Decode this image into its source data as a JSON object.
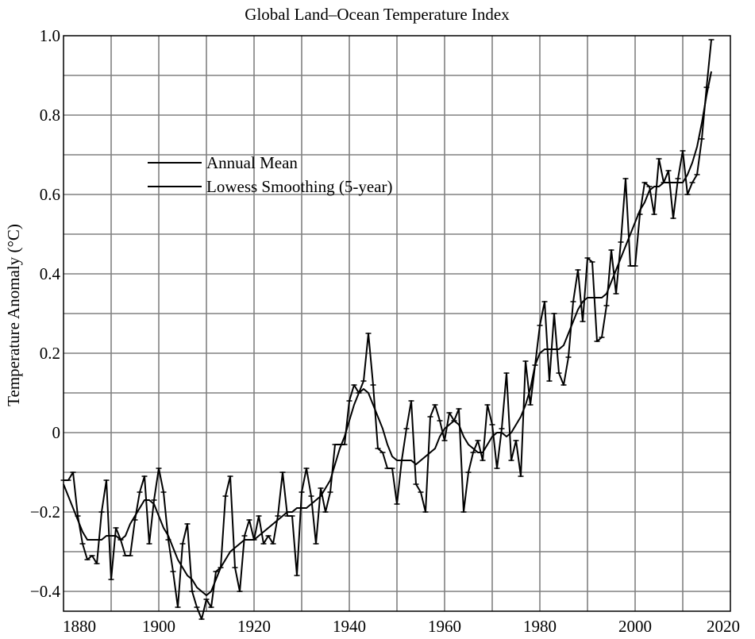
{
  "chart_data": {
    "type": "line",
    "title": "Global Land–Ocean Temperature Index",
    "xlabel": "",
    "ylabel": "Temperature Anomaly (°C)",
    "xlim": [
      1880,
      2020
    ],
    "ylim": [
      -0.45,
      1.0
    ],
    "x_ticks": [
      1880,
      1900,
      1920,
      1940,
      1960,
      1980,
      2000,
      2020
    ],
    "y_ticks": [
      1.0,
      0.8,
      0.6,
      0.4,
      0.2,
      0,
      -0.2,
      -0.4
    ],
    "y_tick_labels": [
      "1.0",
      "0.8",
      "0.6",
      "0.4",
      "0.2",
      "0",
      "−0.2",
      "−0.4"
    ],
    "grid": true,
    "legend": {
      "position": "upper-left",
      "entries": [
        "Annual Mean",
        "Lowess Smoothing (5-year)"
      ]
    },
    "x": [
      1880,
      1881,
      1882,
      1883,
      1884,
      1885,
      1886,
      1887,
      1888,
      1889,
      1890,
      1891,
      1892,
      1893,
      1894,
      1895,
      1896,
      1897,
      1898,
      1899,
      1900,
      1901,
      1902,
      1903,
      1904,
      1905,
      1906,
      1907,
      1908,
      1909,
      1910,
      1911,
      1912,
      1913,
      1914,
      1915,
      1916,
      1917,
      1918,
      1919,
      1920,
      1921,
      1922,
      1923,
      1924,
      1925,
      1926,
      1927,
      1928,
      1929,
      1930,
      1931,
      1932,
      1933,
      1934,
      1935,
      1936,
      1937,
      1938,
      1939,
      1940,
      1941,
      1942,
      1943,
      1944,
      1945,
      1946,
      1947,
      1948,
      1949,
      1950,
      1951,
      1952,
      1953,
      1954,
      1955,
      1956,
      1957,
      1958,
      1959,
      1960,
      1961,
      1962,
      1963,
      1964,
      1965,
      1966,
      1967,
      1968,
      1969,
      1970,
      1971,
      1972,
      1973,
      1974,
      1975,
      1976,
      1977,
      1978,
      1979,
      1980,
      1981,
      1982,
      1983,
      1984,
      1985,
      1986,
      1987,
      1988,
      1989,
      1990,
      1991,
      1992,
      1993,
      1994,
      1995,
      1996,
      1997,
      1998,
      1999,
      2000,
      2001,
      2002,
      2003,
      2004,
      2005,
      2006,
      2007,
      2008,
      2009,
      2010,
      2011,
      2012,
      2013,
      2014,
      2015,
      2016
    ],
    "series": [
      {
        "name": "Annual Mean",
        "values": [
          -0.12,
          -0.12,
          -0.1,
          -0.21,
          -0.28,
          -0.32,
          -0.31,
          -0.33,
          -0.2,
          -0.12,
          -0.37,
          -0.24,
          -0.27,
          -0.31,
          -0.31,
          -0.22,
          -0.15,
          -0.11,
          -0.28,
          -0.17,
          -0.09,
          -0.15,
          -0.27,
          -0.35,
          -0.44,
          -0.28,
          -0.23,
          -0.4,
          -0.44,
          -0.47,
          -0.42,
          -0.44,
          -0.35,
          -0.34,
          -0.16,
          -0.11,
          -0.34,
          -0.4,
          -0.26,
          -0.22,
          -0.27,
          -0.21,
          -0.28,
          -0.26,
          -0.28,
          -0.21,
          -0.1,
          -0.21,
          -0.21,
          -0.36,
          -0.15,
          -0.09,
          -0.16,
          -0.28,
          -0.14,
          -0.2,
          -0.15,
          -0.03,
          -0.03,
          -0.03,
          0.08,
          0.12,
          0.1,
          0.13,
          0.25,
          0.12,
          -0.04,
          -0.05,
          -0.09,
          -0.09,
          -0.18,
          -0.07,
          0.01,
          0.08,
          -0.13,
          -0.15,
          -0.2,
          0.04,
          0.07,
          0.03,
          -0.02,
          0.05,
          0.03,
          0.06,
          -0.2,
          -0.1,
          -0.05,
          -0.02,
          -0.07,
          0.07,
          0.02,
          -0.09,
          0.01,
          0.15,
          -0.07,
          -0.02,
          -0.11,
          0.18,
          0.07,
          0.17,
          0.27,
          0.33,
          0.13,
          0.3,
          0.15,
          0.12,
          0.19,
          0.33,
          0.41,
          0.28,
          0.44,
          0.43,
          0.23,
          0.24,
          0.32,
          0.46,
          0.35,
          0.48,
          0.64,
          0.42,
          0.42,
          0.55,
          0.63,
          0.62,
          0.55,
          0.69,
          0.63,
          0.66,
          0.54,
          0.64,
          0.71,
          0.6,
          0.63,
          0.65,
          0.74,
          0.87,
          0.99
        ]
      },
      {
        "name": "Lowess Smoothing (5-year)",
        "values": [
          -0.13,
          -0.16,
          -0.19,
          -0.22,
          -0.25,
          -0.27,
          -0.27,
          -0.27,
          -0.27,
          -0.26,
          -0.26,
          -0.26,
          -0.27,
          -0.26,
          -0.23,
          -0.21,
          -0.19,
          -0.17,
          -0.17,
          -0.18,
          -0.21,
          -0.24,
          -0.26,
          -0.29,
          -0.32,
          -0.34,
          -0.36,
          -0.37,
          -0.39,
          -0.4,
          -0.41,
          -0.4,
          -0.37,
          -0.34,
          -0.32,
          -0.3,
          -0.29,
          -0.28,
          -0.27,
          -0.27,
          -0.27,
          -0.26,
          -0.25,
          -0.24,
          -0.23,
          -0.22,
          -0.21,
          -0.2,
          -0.2,
          -0.19,
          -0.19,
          -0.19,
          -0.18,
          -0.17,
          -0.16,
          -0.14,
          -0.12,
          -0.08,
          -0.04,
          -0.01,
          0.03,
          0.07,
          0.1,
          0.11,
          0.1,
          0.07,
          0.04,
          0.01,
          -0.03,
          -0.06,
          -0.07,
          -0.07,
          -0.07,
          -0.07,
          -0.08,
          -0.07,
          -0.06,
          -0.05,
          -0.04,
          -0.01,
          0.01,
          0.02,
          0.03,
          0.02,
          -0.01,
          -0.03,
          -0.04,
          -0.05,
          -0.05,
          -0.03,
          -0.01,
          0.0,
          0.0,
          -0.01,
          0.0,
          0.02,
          0.04,
          0.07,
          0.11,
          0.17,
          0.2,
          0.21,
          0.21,
          0.21,
          0.21,
          0.22,
          0.25,
          0.28,
          0.31,
          0.33,
          0.34,
          0.34,
          0.34,
          0.34,
          0.35,
          0.38,
          0.41,
          0.44,
          0.47,
          0.5,
          0.53,
          0.56,
          0.58,
          0.61,
          0.62,
          0.62,
          0.63,
          0.63,
          0.63,
          0.63,
          0.63,
          0.65,
          0.68,
          0.72,
          0.78,
          0.85,
          0.91
        ]
      }
    ]
  }
}
